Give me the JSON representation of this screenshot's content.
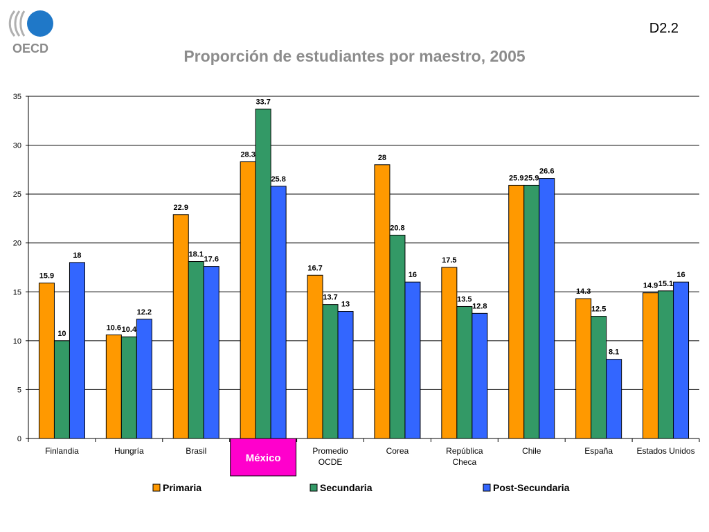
{
  "header": {
    "slide_code": "D2.2",
    "logo_text": "OECD"
  },
  "colors": {
    "primaria": "#ff9900",
    "secundaria": "#339966",
    "post_secundaria": "#3366ff",
    "highlight": "#ff00cc"
  },
  "chart_data": {
    "type": "bar",
    "title": "Proporción de estudiantes por maestro, 2005",
    "xlabel": "",
    "ylabel": "",
    "ylim": [
      0,
      35
    ],
    "yticks": [
      0,
      5,
      10,
      15,
      20,
      25,
      30,
      35
    ],
    "grid": true,
    "legend_position": "bottom",
    "highlighted_category": "México",
    "categories": [
      [
        "Finlandia"
      ],
      [
        "Hungría"
      ],
      [
        "Brasil"
      ],
      [
        "México"
      ],
      [
        "Promedio",
        "OCDE"
      ],
      [
        "Corea"
      ],
      [
        "República",
        "Checa"
      ],
      [
        "Chile"
      ],
      [
        "España"
      ],
      [
        "Estados Unidos"
      ]
    ],
    "series": [
      {
        "name": "Primaria",
        "color": "#ff9900",
        "values": [
          15.9,
          10.6,
          22.9,
          28.3,
          16.7,
          28,
          17.5,
          25.9,
          14.3,
          14.9
        ]
      },
      {
        "name": "Secundaria",
        "color": "#339966",
        "values": [
          10,
          10.4,
          18.1,
          33.7,
          13.7,
          20.8,
          13.5,
          25.9,
          12.5,
          15.1
        ]
      },
      {
        "name": "Post-Secundaria",
        "color": "#3366ff",
        "values": [
          18,
          12.2,
          17.6,
          25.8,
          13,
          16,
          12.8,
          26.6,
          8.1,
          16
        ]
      }
    ]
  }
}
